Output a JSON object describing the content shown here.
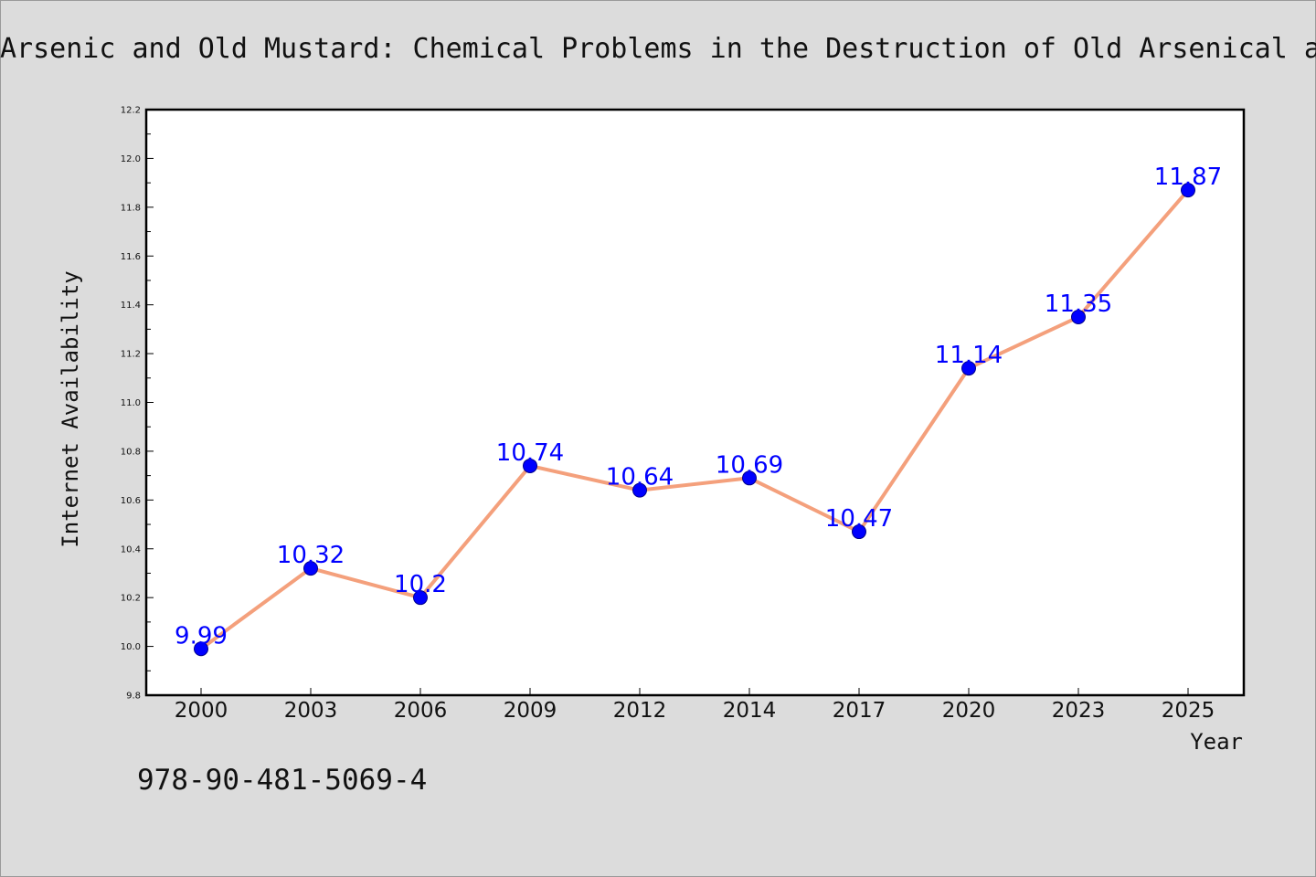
{
  "chart_data": {
    "type": "line",
    "title": "Arsenic and Old Mustard: Chemical Problems in the Destruction of Old Arsenical and 'Mustard' Munitions",
    "xlabel": "Year",
    "ylabel": "Internet Availability",
    "categories": [
      "2000",
      "2003",
      "2006",
      "2009",
      "2012",
      "2014",
      "2017",
      "2020",
      "2023",
      "2025"
    ],
    "values": [
      9.99,
      10.32,
      10.2,
      10.74,
      10.64,
      10.69,
      10.47,
      11.14,
      11.35,
      11.87
    ],
    "data_labels": [
      "9.99",
      "10.32",
      "10.2",
      "10.74",
      "10.64",
      "10.69",
      "10.47",
      "11.14",
      "11.35",
      "11.87"
    ],
    "ylim": [
      9.8,
      12.2
    ],
    "yticks": [
      "9.8",
      "10.0",
      "10.2",
      "10.4",
      "10.6",
      "10.8",
      "11.0",
      "11.2",
      "11.4",
      "11.6",
      "11.8",
      "12.0",
      "12.2"
    ],
    "grid": false,
    "legend": "none",
    "colors": {
      "line": "#f4a07c",
      "marker": "#0000ff",
      "data_label": "#0000ff",
      "background": "#dcdcdc",
      "plot_background": "#ffffff"
    }
  },
  "annotation": "978-90-481-5069-4"
}
